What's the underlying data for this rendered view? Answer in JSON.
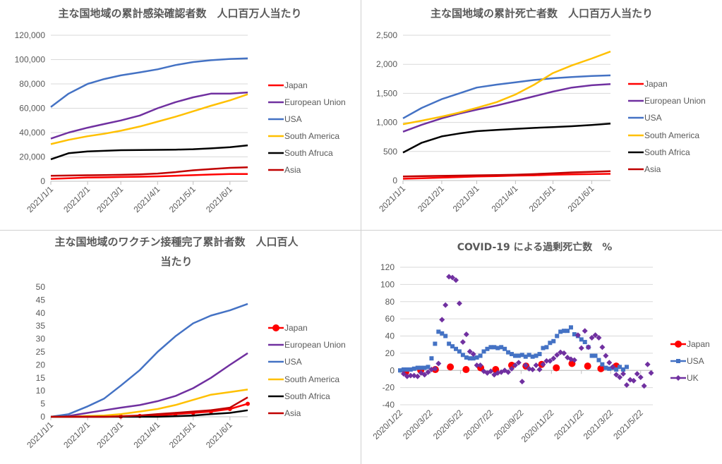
{
  "colors": {
    "Japan": "#ff0000",
    "European Union": "#7030a0",
    "USA": "#4472c4",
    "South America": "#ffc000",
    "South Africa": "#000000",
    "Asia": "#c00000",
    "UK": "#7030a0",
    "grid": "#d9d9d9",
    "axis_text": "#595959"
  },
  "chart_data": [
    {
      "type": "line",
      "title": "主な国地域の累計感染確認者数　人口百万人当たり",
      "x_unit": "days since 2021/1/1",
      "xlim": [
        0,
        166
      ],
      "x_ticks": [
        {
          "x": 0,
          "label": "2021/1/1"
        },
        {
          "x": 31,
          "label": "2021/2/1"
        },
        {
          "x": 59,
          "label": "2021/3/1"
        },
        {
          "x": 90,
          "label": "2021/4/1"
        },
        {
          "x": 120,
          "label": "2021/5/1"
        },
        {
          "x": 151,
          "label": "2021/6/1"
        }
      ],
      "ylim": [
        0,
        120000
      ],
      "y_ticks": [
        {
          "y": 0,
          "label": "0"
        },
        {
          "y": 20000,
          "label": "20,000"
        },
        {
          "y": 40000,
          "label": "40,000"
        },
        {
          "y": 60000,
          "label": "60,000"
        },
        {
          "y": 80000,
          "label": "80,000"
        },
        {
          "y": 100000,
          "label": "100,000"
        },
        {
          "y": 120000,
          "label": "120,000"
        }
      ],
      "grid": true,
      "legend": "right",
      "x": [
        0,
        15,
        31,
        45,
        59,
        75,
        90,
        105,
        120,
        135,
        151,
        166
      ],
      "series": [
        {
          "name": "Japan",
          "color_key": "Japan",
          "values": [
            2000,
            2500,
            3000,
            3200,
            3500,
            3700,
            4000,
            4500,
            5000,
            5500,
            6000,
            6000
          ]
        },
        {
          "name": "European Union",
          "color_key": "European Union",
          "values": [
            35000,
            40000,
            44000,
            47000,
            50000,
            54000,
            60000,
            65000,
            69000,
            72000,
            72000,
            73000
          ]
        },
        {
          "name": "USA",
          "color_key": "USA",
          "values": [
            61000,
            72000,
            80000,
            84000,
            87000,
            89500,
            92000,
            95500,
            98000,
            99500,
            100500,
            101000
          ]
        },
        {
          "name": "South America",
          "color_key": "South America",
          "values": [
            30500,
            34000,
            37000,
            39000,
            41500,
            45000,
            49000,
            53000,
            57500,
            62000,
            66500,
            71500
          ]
        },
        {
          "name": "South Afruca",
          "color_key": "South Africa",
          "values": [
            18000,
            23000,
            24500,
            25000,
            25500,
            25700,
            25800,
            26000,
            26300,
            27000,
            28000,
            29500
          ]
        },
        {
          "name": "Asia",
          "color_key": "Asia",
          "values": [
            4500,
            4700,
            4900,
            5100,
            5300,
            5700,
            6300,
            7500,
            9000,
            10000,
            11000,
            11500
          ]
        }
      ]
    },
    {
      "type": "line",
      "title": "主な国地域の累計死亡者数　人口百万人当たり",
      "x_unit": "days since 2021/1/1",
      "xlim": [
        0,
        166
      ],
      "x_ticks": [
        {
          "x": 0,
          "label": "2021/1/1"
        },
        {
          "x": 31,
          "label": "2021/2/1"
        },
        {
          "x": 59,
          "label": "2021/3/1"
        },
        {
          "x": 90,
          "label": "2021/4/1"
        },
        {
          "x": 120,
          "label": "2021/5/1"
        },
        {
          "x": 151,
          "label": "2021/6/1"
        }
      ],
      "ylim": [
        0,
        2500
      ],
      "y_ticks": [
        {
          "y": 0,
          "label": "0"
        },
        {
          "y": 500,
          "label": "500"
        },
        {
          "y": 1000,
          "label": "1,000"
        },
        {
          "y": 1500,
          "label": "1,500"
        },
        {
          "y": 2000,
          "label": "2,000"
        },
        {
          "y": 2500,
          "label": "2,500"
        }
      ],
      "grid": true,
      "legend": "right",
      "x": [
        0,
        15,
        31,
        45,
        59,
        75,
        90,
        105,
        120,
        135,
        151,
        166
      ],
      "series": [
        {
          "name": "Japan",
          "color_key": "Japan",
          "values": [
            30,
            40,
            50,
            60,
            70,
            75,
            85,
            90,
            100,
            105,
            110,
            115
          ]
        },
        {
          "name": "European Union",
          "color_key": "European Union",
          "values": [
            840,
            960,
            1070,
            1150,
            1220,
            1290,
            1370,
            1450,
            1530,
            1600,
            1640,
            1660
          ]
        },
        {
          "name": "USA",
          "color_key": "USA",
          "values": [
            1070,
            1250,
            1400,
            1500,
            1600,
            1650,
            1690,
            1730,
            1760,
            1780,
            1800,
            1810
          ]
        },
        {
          "name": "South America",
          "color_key": "South America",
          "values": [
            970,
            1030,
            1100,
            1170,
            1250,
            1350,
            1480,
            1650,
            1850,
            1980,
            2100,
            2220
          ]
        },
        {
          "name": "South Africa",
          "color_key": "South Africa",
          "values": [
            480,
            650,
            760,
            810,
            850,
            870,
            890,
            905,
            920,
            935,
            955,
            980
          ]
        },
        {
          "name": "Asia",
          "color_key": "Asia",
          "values": [
            70,
            75,
            80,
            85,
            90,
            95,
            100,
            110,
            125,
            140,
            150,
            160
          ]
        }
      ]
    },
    {
      "type": "line",
      "title": "主な国地域のワクチン接種完了累計者数　人口百人",
      "title_line2": "当たり",
      "x_unit": "days since 2021/1/1",
      "xlim": [
        0,
        166
      ],
      "x_ticks": [
        {
          "x": 0,
          "label": "2021/1/1"
        },
        {
          "x": 31,
          "label": "2021/2/1"
        },
        {
          "x": 59,
          "label": "2021/3/1"
        },
        {
          "x": 90,
          "label": "2021/4/1"
        },
        {
          "x": 120,
          "label": "2021/5/1"
        },
        {
          "x": 151,
          "label": "2021/6/1"
        }
      ],
      "ylim": [
        0,
        50
      ],
      "y_ticks": [
        {
          "y": 0,
          "label": "0"
        },
        {
          "y": 5,
          "label": "5"
        },
        {
          "y": 10,
          "label": "10"
        },
        {
          "y": 15,
          "label": "15"
        },
        {
          "y": 20,
          "label": "20"
        },
        {
          "y": 25,
          "label": "25"
        },
        {
          "y": 30,
          "label": "30"
        },
        {
          "y": 35,
          "label": "35"
        },
        {
          "y": 40,
          "label": "40"
        },
        {
          "y": 45,
          "label": "45"
        },
        {
          "y": 50,
          "label": "50"
        }
      ],
      "grid": false,
      "legend": "right",
      "x": [
        0,
        15,
        31,
        45,
        59,
        75,
        90,
        105,
        120,
        135,
        151,
        166
      ],
      "series": [
        {
          "name": "Japan",
          "color_key": "Japan",
          "marker": "circle",
          "values": [
            0,
            0,
            0,
            0,
            0.1,
            0.3,
            0.5,
            1,
            1.5,
            2,
            3,
            5
          ]
        },
        {
          "name": "European Union",
          "color_key": "European Union",
          "values": [
            0,
            0.3,
            1.5,
            2.5,
            3.5,
            4.5,
            6,
            8,
            11,
            15,
            20,
            24.5
          ]
        },
        {
          "name": "USA",
          "color_key": "USA",
          "values": [
            0,
            1,
            4,
            7,
            12,
            18,
            25,
            31,
            36,
            39,
            41,
            43.5
          ]
        },
        {
          "name": "South America",
          "color_key": "South America",
          "values": [
            0,
            0,
            0.3,
            0.5,
            1,
            2,
            3,
            4.5,
            6.5,
            8.5,
            9.5,
            10.5
          ]
        },
        {
          "name": "South Africa",
          "color_key": "South Africa",
          "values": [
            0,
            0,
            0,
            0,
            0,
            0,
            0,
            0.2,
            0.5,
            1,
            1.5,
            2.5
          ]
        },
        {
          "name": "Asia",
          "color_key": "Asia",
          "values": [
            0,
            0,
            0,
            0,
            0.2,
            0.5,
            1,
            1.5,
            2,
            2.5,
            3.5,
            7.5
          ]
        }
      ]
    },
    {
      "type": "scatter",
      "title": "COVID-19 による過剰死亡数　%",
      "x_unit": "weeks since 2020/1/22",
      "xlim": [
        0,
        72.5
      ],
      "x_ticks": [
        {
          "x": 0,
          "label": "2020/1/22"
        },
        {
          "x": 8.6,
          "label": "2020/3/22"
        },
        {
          "x": 17.3,
          "label": "2020/5/22"
        },
        {
          "x": 26,
          "label": "2020/7/22"
        },
        {
          "x": 34.7,
          "label": "2020/9/22"
        },
        {
          "x": 43.4,
          "label": "2020/11/22"
        },
        {
          "x": 52,
          "label": "2021/1/22"
        },
        {
          "x": 60.4,
          "label": "2021/3/22"
        },
        {
          "x": 69,
          "label": "2021/5/22"
        }
      ],
      "ylim": [
        -40,
        120
      ],
      "y_ticks": [
        {
          "y": -40,
          "label": "-40"
        },
        {
          "y": -20,
          "label": "-20"
        },
        {
          "y": 0,
          "label": "0"
        },
        {
          "y": 20,
          "label": "20"
        },
        {
          "y": 40,
          "label": "40"
        },
        {
          "y": 60,
          "label": "60"
        },
        {
          "y": 80,
          "label": "80"
        },
        {
          "y": 100,
          "label": "100"
        },
        {
          "y": 120,
          "label": "120"
        }
      ],
      "grid": true,
      "legend": "right",
      "series": [
        {
          "name": "Japan",
          "color_key": "Japan",
          "marker": "circle",
          "x": [
            1.6,
            5.9,
            10.1,
            14.4,
            18.9,
            23.1,
            27.4,
            32,
            36.1,
            40.6,
            44.8,
            49.3,
            53.8,
            57.6,
            62
          ],
          "values": [
            -2,
            0,
            1,
            4,
            1,
            3,
            1,
            6,
            5,
            7,
            3,
            8,
            5,
            2,
            5
          ]
        },
        {
          "name": "USA",
          "color_key": "USA",
          "marker": "square",
          "x": [
            0,
            1,
            2,
            3,
            4,
            5,
            6,
            7,
            8,
            9,
            10,
            11,
            12,
            13,
            14,
            15,
            16,
            17,
            18,
            19,
            20,
            21,
            22,
            23,
            24,
            25,
            26,
            27,
            28,
            29,
            30,
            31,
            32,
            33,
            34,
            35,
            36,
            37,
            38,
            39,
            40,
            41,
            42,
            43,
            44,
            45,
            46,
            47,
            48,
            49,
            50,
            51,
            52,
            53,
            54,
            55,
            56,
            57,
            58,
            59,
            60,
            61,
            62,
            63,
            64,
            65
          ],
          "values": [
            0,
            1,
            1,
            1,
            2,
            3,
            3,
            3,
            4,
            14,
            31,
            45,
            43,
            40,
            31,
            28,
            25,
            22,
            18,
            15,
            14,
            14,
            15,
            17,
            22,
            25,
            27,
            27,
            26,
            27,
            25,
            21,
            19,
            17,
            17,
            18,
            16,
            18,
            16,
            17,
            19,
            26,
            27,
            32,
            34,
            40,
            45,
            46,
            46,
            50,
            42,
            40,
            36,
            33,
            27,
            17,
            17,
            12,
            7,
            3,
            2,
            3,
            1,
            4,
            1,
            4
          ]
        },
        {
          "name": "UK",
          "color_key": "UK",
          "marker": "diamond",
          "x": [
            1,
            2,
            3,
            4,
            5,
            6,
            7,
            8,
            9,
            10,
            11,
            12,
            13,
            14,
            15,
            16,
            17,
            18,
            19,
            20,
            21,
            22,
            23,
            24,
            25,
            26,
            27,
            28,
            29,
            30,
            31,
            32,
            33,
            34,
            35,
            36,
            37,
            38,
            39,
            40,
            41,
            42,
            43,
            44,
            45,
            46,
            47,
            48,
            49,
            50,
            51,
            52,
            53,
            54,
            55,
            56,
            57,
            58,
            59,
            60,
            61,
            62,
            63,
            64,
            65,
            66,
            67,
            68,
            69,
            70,
            71,
            72
          ],
          "values": [
            -4,
            -7,
            -6,
            -6,
            -7,
            -3,
            -5,
            -2,
            1,
            2,
            8,
            59,
            76,
            109,
            108,
            105,
            78,
            33,
            42,
            22,
            19,
            6,
            6,
            -1,
            -3,
            -1,
            -5,
            -3,
            -2,
            0,
            -2,
            2,
            6,
            9,
            -13,
            6,
            2,
            1,
            6,
            1,
            7,
            11,
            11,
            14,
            18,
            21,
            20,
            15,
            13,
            12,
            41,
            26,
            46,
            27,
            38,
            41,
            38,
            27,
            17,
            9,
            4,
            -5,
            -8,
            -4,
            -17,
            -11,
            -12,
            -4,
            -8,
            -18,
            7,
            -3
          ]
        }
      ]
    }
  ]
}
